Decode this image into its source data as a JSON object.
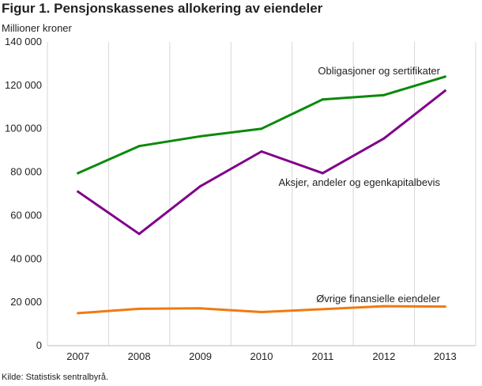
{
  "title": "Figur 1. Pensjonskassenes allokering av eiendeler",
  "source": "Kilde: Statistisk sentralbyrå.",
  "chart_data": {
    "type": "line",
    "title": "Figur 1. Pensjonskassenes allokering av eiendeler",
    "ylabel": "Millioner kroner",
    "xlabel": "",
    "x": [
      "2007",
      "2008",
      "2009",
      "2010",
      "2011",
      "2012",
      "2013"
    ],
    "ylim": [
      0,
      140000
    ],
    "yticks": [
      0,
      20000,
      40000,
      60000,
      80000,
      100000,
      120000,
      140000
    ],
    "ytick_labels": [
      "0",
      "20 000",
      "40 000",
      "60 000",
      "80 000",
      "100 000",
      "120 000",
      "140 000"
    ],
    "grid": "vertical",
    "series": [
      {
        "name": "Obligasjoner og sertifikater",
        "color": "#0a8a0a",
        "values": [
          79500,
          92000,
          96500,
          100000,
          113500,
          115500,
          124000
        ]
      },
      {
        "name": "Aksjer, andeler og egenkapitalbevis",
        "color": "#80008a",
        "values": [
          71000,
          51500,
          73500,
          89500,
          79500,
          95500,
          117500
        ]
      },
      {
        "name": "Øvrige finansielle eiendeler",
        "color": "#f07a12",
        "values": [
          15000,
          17000,
          17200,
          15500,
          16800,
          18200,
          18000
        ]
      }
    ]
  }
}
